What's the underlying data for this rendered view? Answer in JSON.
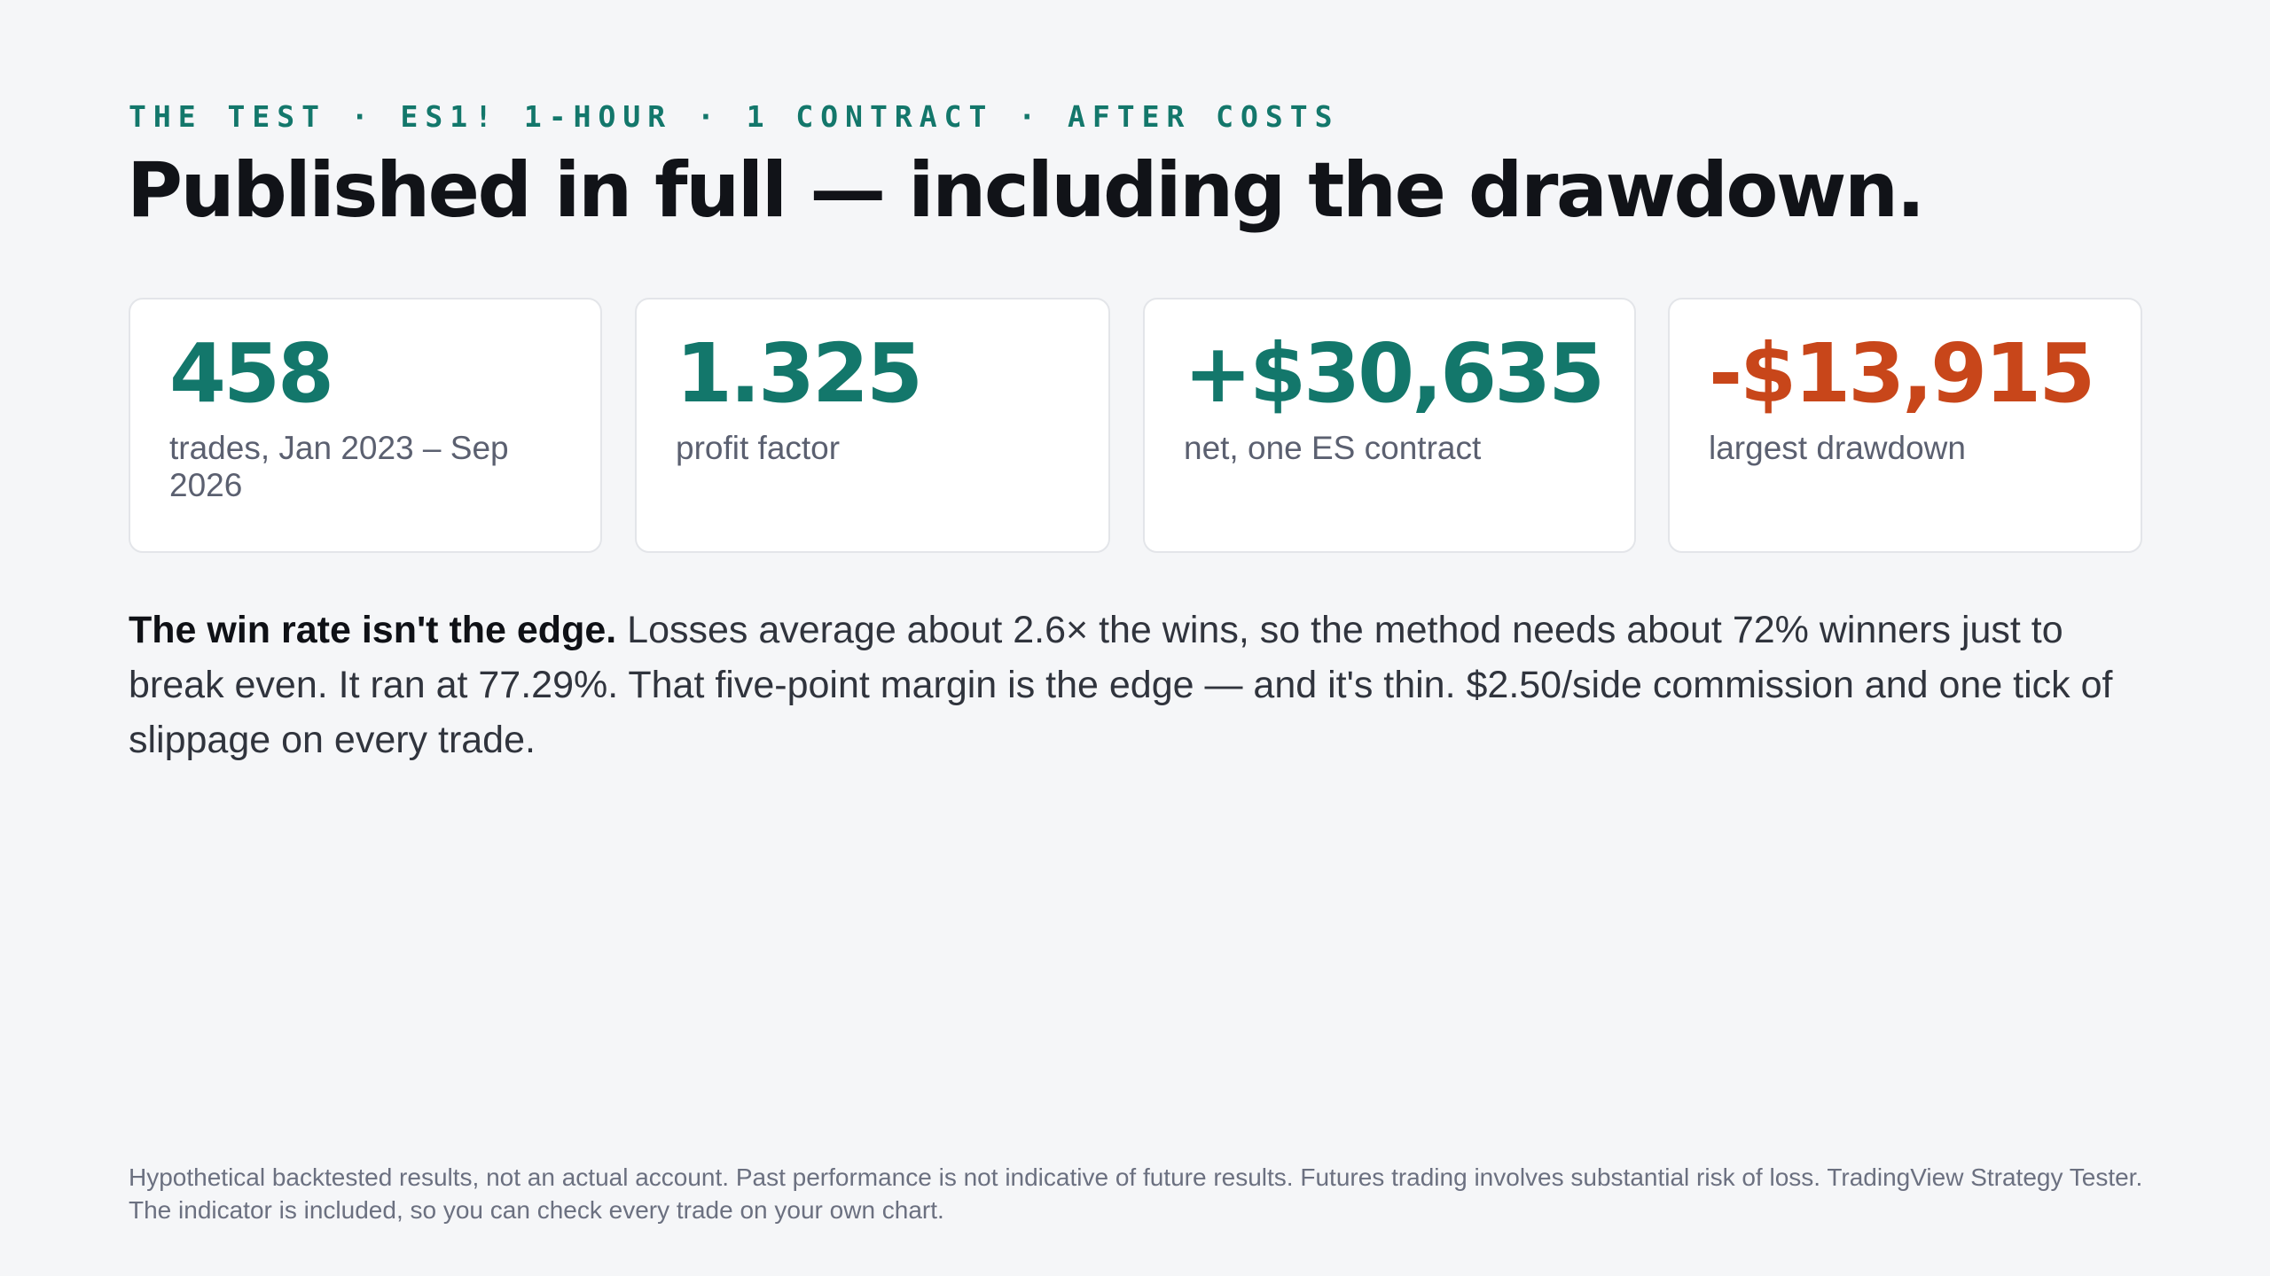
{
  "header": {
    "eyebrow": "THE TEST · ES1! 1-HOUR · 1 CONTRACT · AFTER COSTS",
    "title": "Published in full — including the drawdown."
  },
  "stats": [
    {
      "value": "458",
      "label": "trades, Jan 2023 – Sep 2026",
      "color": "#13776b"
    },
    {
      "value": "1.325",
      "label": "profit factor",
      "color": "#13776b"
    },
    {
      "value": "+$30,635",
      "label": "net, one ES contract",
      "color": "#13776b"
    },
    {
      "value": "-$13,915",
      "label": "largest drawdown",
      "color": "#c8461a"
    }
  ],
  "body": {
    "lead": "The win rate isn't the edge.",
    "text": "Losses average about 2.6× the wins, so the method needs about 72% winners just to break even. It ran at 77.29%. That five-point margin is the edge — and it's thin. $2.50/side commission and one tick of slippage on every trade."
  },
  "disclaimer": "Hypothetical backtested results, not an actual account. Past performance is not indicative of future results. Futures trading involves substantial risk of loss. TradingView Strategy Tester. The indicator is included, so you can check every trade on your own chart.",
  "colors": {
    "accent": "#13776b",
    "negative": "#c8461a",
    "background": "#f5f6f8"
  }
}
